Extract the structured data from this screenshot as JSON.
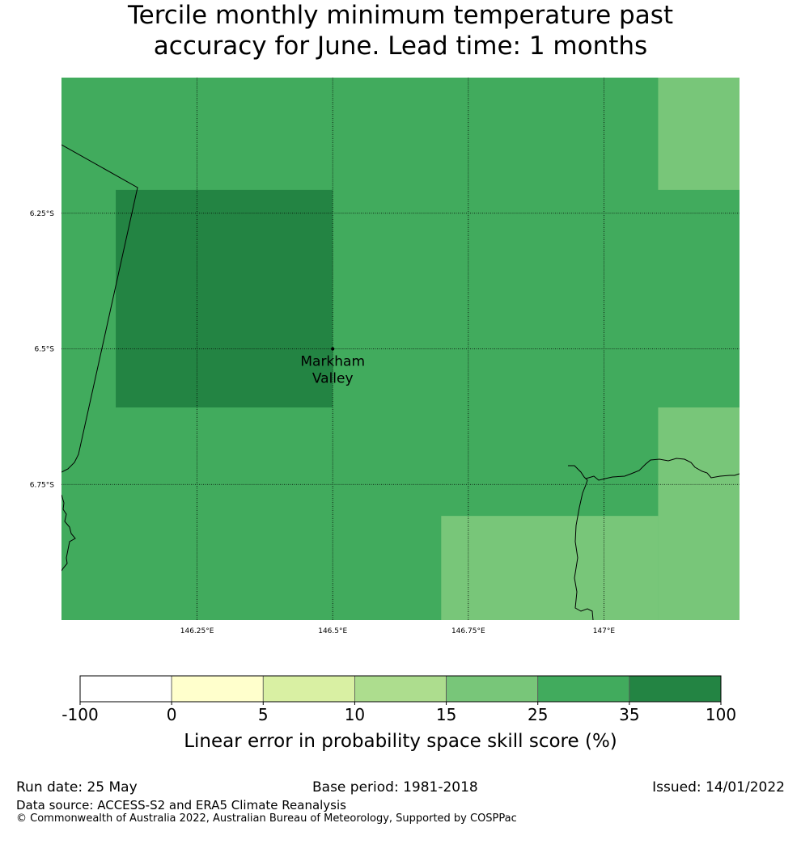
{
  "title": "Tercile monthly minimum temperature past\naccuracy for June. Lead time: 1 months",
  "colors": {
    "c_neg": "#ffffff",
    "c_0_5": "#ffffcc",
    "c_5_10": "#d9f0a3",
    "c_10_15": "#addd8e",
    "c_15_25": "#78c679",
    "c_25_35": "#41ab5d",
    "c_35_100": "#238443",
    "coast": "#000000"
  },
  "map": {
    "lon_range": [
      146.0,
      147.25
    ],
    "lat_range": [
      -6.0,
      -7.0
    ],
    "lat_ticks": [
      {
        "label": "6.25°S",
        "lat": -6.25
      },
      {
        "label": "6.5°S",
        "lat": -6.5
      },
      {
        "label": "6.75°S",
        "lat": -6.75
      }
    ],
    "lon_ticks": [
      {
        "label": "146.25°E",
        "lon": 146.25
      },
      {
        "label": "146.5°E",
        "lon": 146.5
      },
      {
        "label": "146.75°E",
        "lon": 146.75
      },
      {
        "label": "147°E",
        "lon": 147.0
      }
    ],
    "cells": [
      {
        "lon": [
          146.0,
          147.25
        ],
        "lat": [
          -6.0,
          -7.0
        ],
        "color": "c_25_35"
      },
      {
        "lon": [
          147.1,
          147.25
        ],
        "lat": [
          -6.0,
          -6.207
        ],
        "color": "c_15_25"
      },
      {
        "lon": [
          146.1,
          146.5
        ],
        "lat": [
          -6.207,
          -6.608
        ],
        "color": "c_35_100"
      },
      {
        "lon": [
          147.1,
          147.25
        ],
        "lat": [
          -6.608,
          -7.0
        ],
        "color": "c_15_25"
      },
      {
        "lon": [
          146.7,
          147.1
        ],
        "lat": [
          -6.808,
          -7.0
        ],
        "color": "c_15_25"
      }
    ],
    "place": {
      "name_line1": "Markham",
      "name_line2": "Valley",
      "lon": 146.5,
      "lat": -6.5
    }
  },
  "colorbar": {
    "boundaries": [
      "-100",
      "0",
      "5",
      "10",
      "15",
      "25",
      "35",
      "100"
    ],
    "colors": [
      "c_neg",
      "c_0_5",
      "c_5_10",
      "c_10_15",
      "c_15_25",
      "c_25_35",
      "c_35_100"
    ],
    "label": "Linear error in probability space skill score (%)"
  },
  "footer": {
    "run_date": "Run date: 25 May",
    "base_period": "Base period: 1981-2018",
    "issued": "Issued: 14/01/2022",
    "data_source": "Data source: ACCESS-S2 and ERA5 Climate Reanalysis",
    "copyright": "© Commonwealth of Australia 2022, Australian Bureau of Meteorology, Supported by COSPPac"
  }
}
